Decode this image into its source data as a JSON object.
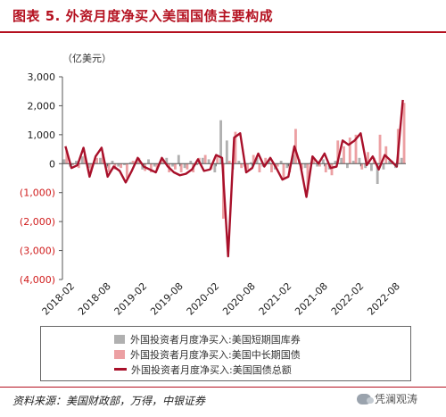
{
  "figure": {
    "title": "图表 5. 外资月度净买入美国国债主要构成",
    "unit_label": "（亿美元）",
    "source": "资料来源：美国财政部，万得，中银证券",
    "watermark": "凭澜观涛"
  },
  "colors": {
    "title_red": "#b4101f",
    "short_term_bar": "#b0b0b0",
    "long_term_bar": "#eca0a3",
    "total_line": "#a8102a",
    "axis": "#555555"
  },
  "chart_data": {
    "type": "bar+line",
    "title": "图表 5. 外资月度净买入美国国债主要构成",
    "ylabel": "（亿美元）",
    "ylim": [
      -4000,
      3000
    ],
    "yticks": [
      3000,
      2000,
      1000,
      0,
      -1000,
      -2000,
      -3000,
      -4000
    ],
    "ytick_labels": [
      "3,000",
      "2,000",
      "1,000",
      "0",
      "(1,000)",
      "(2,000)",
      "(3,000)",
      "(4,000)"
    ],
    "grid": false,
    "legend_position": "bottom",
    "x_tick_labels": [
      "2018-02",
      "2018-08",
      "2019-02",
      "2019-08",
      "2020-02",
      "2020-08",
      "2021-02",
      "2021-08",
      "2022-02",
      "2022-08"
    ],
    "x": [
      "2018-01",
      "2018-02",
      "2018-03",
      "2018-04",
      "2018-05",
      "2018-06",
      "2018-07",
      "2018-08",
      "2018-09",
      "2018-10",
      "2018-11",
      "2018-12",
      "2019-01",
      "2019-02",
      "2019-03",
      "2019-04",
      "2019-05",
      "2019-06",
      "2019-07",
      "2019-08",
      "2019-09",
      "2019-10",
      "2019-11",
      "2019-12",
      "2020-01",
      "2020-02",
      "2020-03",
      "2020-04",
      "2020-05",
      "2020-06",
      "2020-07",
      "2020-08",
      "2020-09",
      "2020-10",
      "2020-11",
      "2020-12",
      "2021-01",
      "2021-02",
      "2021-03",
      "2021-04",
      "2021-05",
      "2021-06",
      "2021-07",
      "2021-08",
      "2021-09",
      "2021-10",
      "2021-11",
      "2021-12",
      "2022-01",
      "2022-02",
      "2022-03",
      "2022-04",
      "2022-05",
      "2022-06",
      "2022-07",
      "2022-08",
      "2022-09"
    ],
    "series": [
      {
        "name": "外国投资者月度净买入:美国短期国库券",
        "kind": "bar",
        "values": [
          150,
          -100,
          100,
          250,
          -150,
          50,
          200,
          -150,
          100,
          -100,
          -50,
          50,
          100,
          -200,
          150,
          -100,
          50,
          200,
          -100,
          300,
          -150,
          100,
          -50,
          200,
          150,
          -300,
          1500,
          800,
          -200,
          100,
          -100,
          50,
          200,
          -100,
          150,
          -200,
          100,
          -150,
          300,
          150,
          -150,
          50,
          -100,
          150,
          -200,
          100,
          200,
          -150,
          100,
          200,
          -150,
          -250,
          -700,
          -200,
          100,
          -150,
          200
        ]
      },
      {
        "name": "外国投资者月度净买入:美国中长期国债",
        "kind": "bar",
        "values": [
          450,
          -50,
          -150,
          300,
          -300,
          200,
          350,
          -300,
          -200,
          -150,
          -500,
          100,
          200,
          -250,
          -300,
          -200,
          150,
          -300,
          -200,
          -300,
          -200,
          -300,
          200,
          300,
          -200,
          250,
          -1900,
          100,
          1100,
          -150,
          -200,
          300,
          -300,
          200,
          -300,
          -100,
          -500,
          -300,
          1200,
          -200,
          -900,
          200,
          -100,
          -300,
          -400,
          800,
          600,
          900,
          1000,
          -200,
          400,
          200,
          1000,
          600,
          100,
          1200,
          2100
        ]
      },
      {
        "name": "外国投资者月度净买入:美国国债总额",
        "kind": "line",
        "values": [
          600,
          -150,
          -50,
          550,
          -450,
          250,
          550,
          -450,
          -100,
          -250,
          -650,
          -250,
          200,
          -100,
          -200,
          -300,
          200,
          -100,
          -300,
          -400,
          -350,
          -200,
          150,
          -250,
          -200,
          300,
          200,
          -3200,
          900,
          1050,
          -300,
          -150,
          350,
          -100,
          200,
          -150,
          -550,
          -450,
          600,
          -50,
          -1150,
          250,
          0,
          350,
          -150,
          -100,
          800,
          650,
          800,
          1050,
          -50,
          250,
          -200,
          300,
          100,
          -100,
          2200
        ]
      }
    ]
  }
}
